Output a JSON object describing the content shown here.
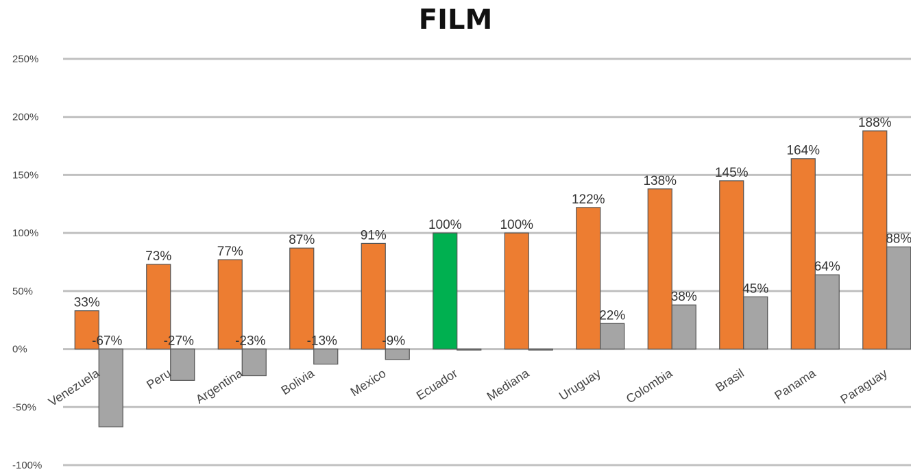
{
  "chart_data": {
    "type": "bar",
    "title": "FILM",
    "xlabel": "",
    "ylabel": "",
    "ylim": [
      -1.0,
      2.5
    ],
    "yticks": [
      -1.0,
      -0.5,
      0.0,
      0.5,
      1.0,
      1.5,
      2.0,
      2.5
    ],
    "ytick_labels": [
      "-100%",
      "-50%",
      "0%",
      "50%",
      "100%",
      "150%",
      "200%",
      "250%"
    ],
    "grid": true,
    "categories": [
      "Venezuela",
      "Peru",
      "Argentina",
      "Bolivia",
      "Mexico",
      "Ecuador",
      "Mediana",
      "Uruguay",
      "Colombia",
      "Brasil",
      "Panama",
      "Paraguay"
    ],
    "series": [
      {
        "color": "#ED7D31",
        "highlight": {
          "category": "Ecuador",
          "color": "#00B050"
        },
        "values": [
          0.33,
          0.73,
          0.77,
          0.87,
          0.91,
          1.0,
          1.0,
          1.22,
          1.38,
          1.45,
          1.64,
          1.88
        ],
        "labels": [
          "33%",
          "73%",
          "77%",
          "87%",
          "91%",
          "100%",
          "100%",
          "122%",
          "138%",
          "145%",
          "164%",
          "188%"
        ]
      },
      {
        "color": "#A5A5A5",
        "values": [
          -0.67,
          -0.27,
          -0.23,
          -0.13,
          -0.09,
          0.0,
          0.0,
          0.22,
          0.38,
          0.45,
          0.64,
          0.88
        ],
        "labels": [
          "-67%",
          "-27%",
          "-23%",
          "-13%",
          "-9%",
          "",
          "",
          "22%",
          "38%",
          "45%",
          "64%",
          "88%"
        ]
      }
    ]
  }
}
